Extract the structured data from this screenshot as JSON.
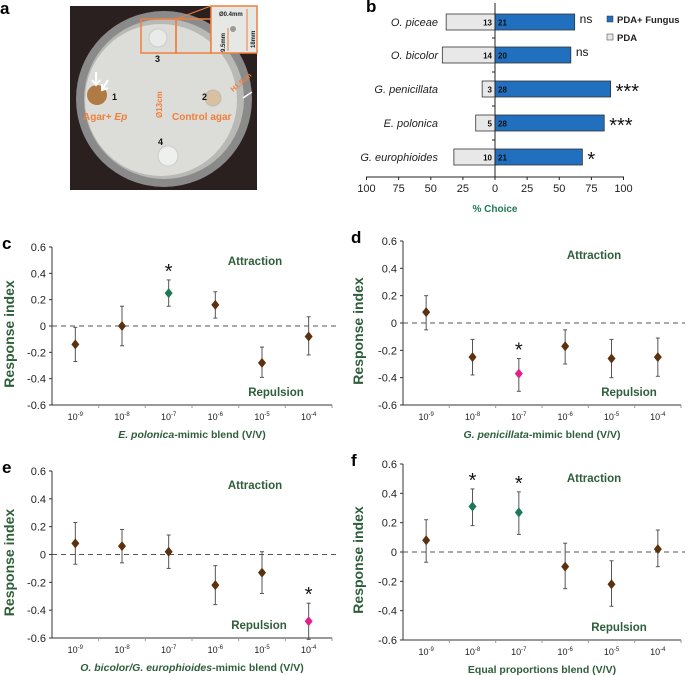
{
  "colors": {
    "fungus": "#2170c0",
    "pda": "#e8e8e8",
    "label_green": "#2e5e3a",
    "marker": "#5a3210",
    "sig_attr": "#1a7a55",
    "sig_rep": "#e0218a",
    "photo_text": "#f07f3c"
  },
  "panel_a": {
    "letter": "a",
    "labels": {
      "well1": "1",
      "well2": "2",
      "well3": "3",
      "well4": "4",
      "agar_ep": "Agar+ ",
      "ep": "Ep",
      "control": "Control agar",
      "diameter": "Ø13cm",
      "height": "H1.5cm",
      "inset_hole": "Ø0.4mm",
      "inset_depth": "9.5mm",
      "inset_height": "18mm"
    }
  },
  "chart_data": [
    {
      "type": "bar",
      "letter": "b",
      "orientation": "horizontal",
      "categories": [
        "O. piceae",
        "O. bicolor",
        "G. penicillata",
        "E. polonica",
        "G. europhioides"
      ],
      "series": [
        {
          "name": "PDA+ Fungus",
          "values": [
            62,
            59,
            90,
            85,
            68
          ],
          "counts": [
            "21",
            "20",
            "28",
            "28",
            "21"
          ]
        },
        {
          "name": "PDA",
          "values": [
            38,
            41,
            10,
            15,
            32
          ],
          "counts": [
            "13",
            "14",
            "3",
            "5",
            "10"
          ]
        }
      ],
      "significance": [
        "ns",
        "ns",
        "***",
        "***",
        "*"
      ],
      "xticks": [
        "100",
        "75",
        "50",
        "25",
        "0",
        "25",
        "50",
        "75",
        "100"
      ],
      "xlabel": "% Choice",
      "xlim": [
        -100,
        100
      ],
      "legend": "top-right"
    },
    {
      "type": "scatter",
      "letter": "c",
      "ylabel": "Response index",
      "xlabel_italic": "E. polonica",
      "xlabel_rest": "-mimic blend (V/V)",
      "yticks": [
        "0.6",
        "0.4",
        "0.2",
        "0",
        "-0.2",
        "-0.4",
        "-0.6"
      ],
      "ylim": [
        -0.6,
        0.6
      ],
      "xticks": [
        {
          "base": "10",
          "exp": "-9"
        },
        {
          "base": "10",
          "exp": "-8"
        },
        {
          "base": "10",
          "exp": "-7"
        },
        {
          "base": "10",
          "exp": "-6"
        },
        {
          "base": "10",
          "exp": "-5"
        },
        {
          "base": "10",
          "exp": "-4"
        }
      ],
      "values": [
        -0.14,
        0.0,
        0.25,
        0.16,
        -0.28,
        -0.08
      ],
      "err_low": [
        -0.27,
        -0.15,
        0.15,
        0.06,
        -0.39,
        -0.22
      ],
      "err_high": [
        -0.01,
        0.15,
        0.35,
        0.26,
        -0.16,
        0.07
      ],
      "sig": [
        "",
        "",
        "*",
        "",
        "",
        ""
      ],
      "annot_top": "Attraction",
      "annot_bottom": "Repulsion"
    },
    {
      "type": "scatter",
      "letter": "d",
      "ylabel": "Response index",
      "xlabel_italic": "G. penicillata",
      "xlabel_rest": "-mimic blend (V/V)",
      "yticks": [
        "0.6",
        "0.4",
        "0.2",
        "0",
        "-0.2",
        "-0.4",
        "-0.6"
      ],
      "ylim": [
        -0.6,
        0.6
      ],
      "xticks": [
        {
          "base": "10",
          "exp": "-9"
        },
        {
          "base": "10",
          "exp": "-8"
        },
        {
          "base": "10",
          "exp": "-7"
        },
        {
          "base": "10",
          "exp": "-6"
        },
        {
          "base": "10",
          "exp": "-5"
        },
        {
          "base": "10",
          "exp": "-4"
        }
      ],
      "values": [
        0.08,
        -0.25,
        -0.37,
        -0.17,
        -0.26,
        -0.25
      ],
      "err_low": [
        -0.05,
        -0.38,
        -0.5,
        -0.3,
        -0.4,
        -0.39
      ],
      "err_high": [
        0.2,
        -0.12,
        -0.26,
        -0.05,
        -0.12,
        -0.11
      ],
      "sig": [
        "",
        "",
        "*",
        "",
        "",
        ""
      ],
      "annot_top": "Attraction",
      "annot_bottom": "Repulsion"
    },
    {
      "type": "scatter",
      "letter": "e",
      "ylabel": "Response index",
      "xlabel_italic": "O. bicolor/G. europhioides",
      "xlabel_rest": "-mimic blend (V/V)",
      "yticks": [
        "0.6",
        "0.4",
        "0.2",
        "0",
        "-0.2",
        "-0.4",
        "-0.6"
      ],
      "ylim": [
        -0.6,
        0.6
      ],
      "xticks": [
        {
          "base": "10",
          "exp": "-9"
        },
        {
          "base": "10",
          "exp": "-8"
        },
        {
          "base": "10",
          "exp": "-7"
        },
        {
          "base": "10",
          "exp": "-6"
        },
        {
          "base": "10",
          "exp": "-5"
        },
        {
          "base": "10",
          "exp": "-4"
        }
      ],
      "values": [
        0.08,
        0.06,
        0.02,
        -0.22,
        -0.13,
        -0.48
      ],
      "err_low": [
        -0.07,
        -0.06,
        -0.1,
        -0.36,
        -0.28,
        -0.61
      ],
      "err_high": [
        0.23,
        0.18,
        0.14,
        -0.08,
        0.02,
        -0.35
      ],
      "sig": [
        "",
        "",
        "",
        "",
        "",
        "*"
      ],
      "annot_top": "Attraction",
      "annot_bottom": "Repulsion"
    },
    {
      "type": "scatter",
      "letter": "f",
      "ylabel": "Response index",
      "xlabel_italic": "",
      "xlabel_rest": "Equal proportions blend (V/V)",
      "yticks": [
        "0.6",
        "0.4",
        "0.2",
        "0",
        "-0.2",
        "-0.4",
        "-0.6"
      ],
      "ylim": [
        -0.6,
        0.6
      ],
      "xticks": [
        {
          "base": "10",
          "exp": "-9"
        },
        {
          "base": "10",
          "exp": "-8"
        },
        {
          "base": "10",
          "exp": "-7"
        },
        {
          "base": "10",
          "exp": "-6"
        },
        {
          "base": "10",
          "exp": "-5"
        },
        {
          "base": "10",
          "exp": "-4"
        }
      ],
      "values": [
        0.08,
        0.31,
        0.27,
        -0.1,
        -0.22,
        0.02
      ],
      "err_low": [
        -0.07,
        0.18,
        0.12,
        -0.25,
        -0.37,
        -0.1
      ],
      "err_high": [
        0.22,
        0.43,
        0.41,
        0.06,
        -0.06,
        0.15
      ],
      "sig": [
        "",
        "*",
        "*",
        "",
        "",
        ""
      ],
      "annot_top": "Attraction",
      "annot_bottom": "Repulsion"
    }
  ]
}
